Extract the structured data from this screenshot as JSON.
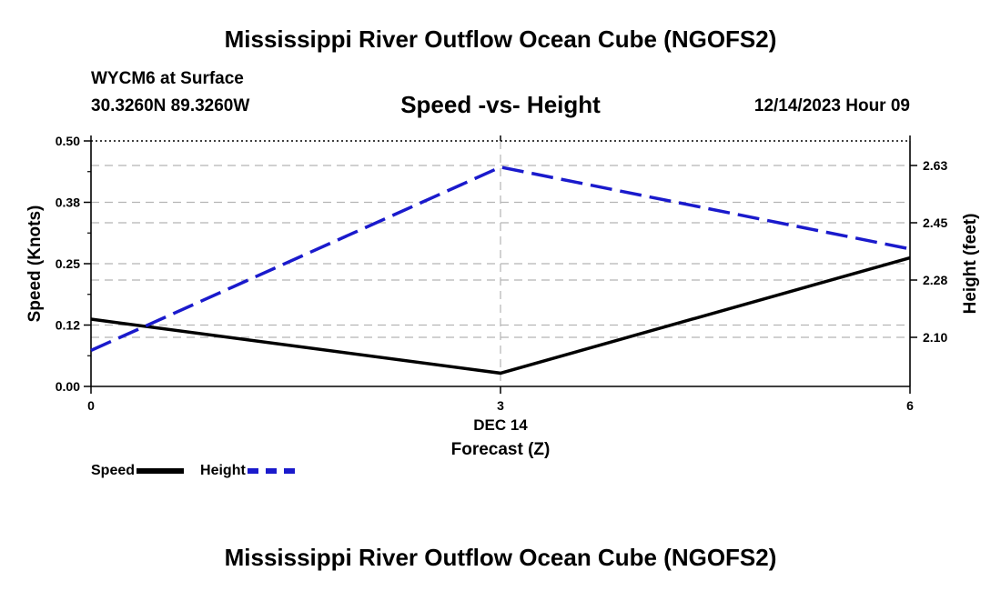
{
  "header": {
    "title": "Mississippi River Outflow Ocean Cube (NGOFS2)",
    "station": "WYCM6 at Surface",
    "coordinates": "30.3260N  89.3260W",
    "subtitle": "Speed -vs- Height",
    "datetime": "12/14/2023 Hour 09"
  },
  "footer": {
    "title": "Mississippi River Outflow Ocean Cube (NGOFS2)"
  },
  "legend": {
    "speed_label": "Speed",
    "height_label": "Height"
  },
  "chart_data": {
    "type": "line",
    "title": "Speed -vs- Height",
    "xlabel": "Forecast (Z)",
    "x_sublabel": "DEC 14",
    "ylabel": "Speed (Knots)",
    "y2label": "Height (feet)",
    "x": [
      0,
      3,
      6
    ],
    "xticks": [
      0,
      3,
      6
    ],
    "xtick_labels": [
      "0",
      "3",
      "6"
    ],
    "xlim": [
      0,
      6
    ],
    "ylim": [
      0,
      0.5
    ],
    "yticks": [
      0.0,
      0.125,
      0.25,
      0.375,
      0.5
    ],
    "ytick_labels": [
      "0.00",
      "0.12",
      "0.25",
      "0.38",
      "0.50"
    ],
    "y2lim": [
      1.95,
      2.7
    ],
    "y2ticks": [
      2.1,
      2.275,
      2.45,
      2.625
    ],
    "y2tick_labels": [
      "2.10",
      "2.28",
      "2.45",
      "2.63"
    ],
    "grid": true,
    "legend_position": "bottom-left",
    "series": [
      {
        "name": "Speed",
        "axis": "left",
        "style": "solid",
        "color": "#000000",
        "values": [
          0.137,
          0.027,
          0.262
        ]
      },
      {
        "name": "Height",
        "axis": "right",
        "style": "dashed",
        "color": "#1a1acc",
        "values": [
          2.06,
          2.62,
          2.37
        ]
      }
    ]
  }
}
